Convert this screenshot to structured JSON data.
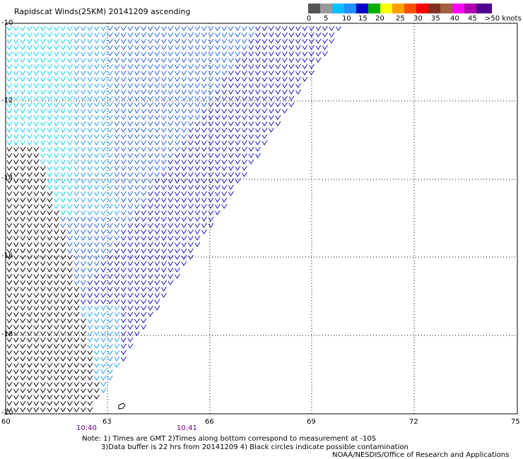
{
  "title": "Rapidscat Winds(25KM) 20141209 ascending",
  "legend": {
    "labels": [
      "0",
      "5",
      "10",
      "15",
      "20",
      "25",
      "30",
      "35",
      "40",
      "45",
      ">50 knots"
    ],
    "colors": [
      "#555555",
      "#9b9b9b",
      "#00c0ff",
      "#1e90ff",
      "#0000c8",
      "#00b000",
      "#ffff00",
      "#ffa000",
      "#ff5000",
      "#ff0000",
      "#803020",
      "#a06040",
      "#ff00ff",
      "#b000b0",
      "#500090"
    ]
  },
  "axes": {
    "lat_labels": [
      "-10",
      "-12",
      "-14",
      "-16",
      "-18",
      "-20"
    ],
    "lon_labels": [
      "60",
      "63",
      "66",
      "69",
      "72",
      "75"
    ]
  },
  "times": [
    "10:40",
    "10:41"
  ],
  "notes": {
    "line1": "Note: 1) Times are GMT 2)Times along bottom correspond to measurement at -10S",
    "line2": "3)Data buffer is 22 hrs from 20141209 4) Black circles indicate possible contamination",
    "line3": "NOAA/NESDIS/Office of Research and Applications"
  }
}
